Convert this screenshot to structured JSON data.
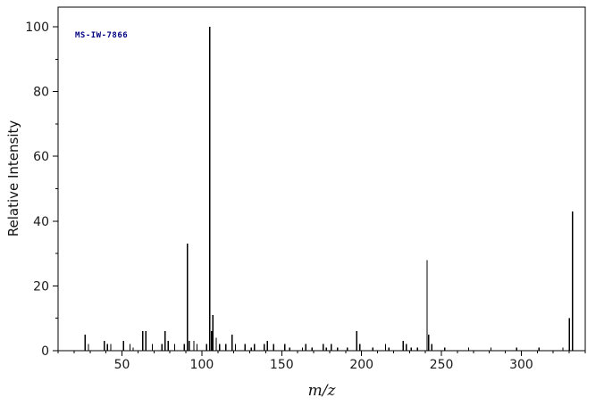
{
  "chart_data": {
    "type": "bar",
    "subtype": "mass-spectrum",
    "annotation": "MS-IW-7866",
    "xlabel": "m/z",
    "ylabel": "Relative Intensity",
    "xlim": [
      10,
      340
    ],
    "ylim": [
      0,
      100
    ],
    "x_major_ticks": [
      50,
      100,
      150,
      200,
      250,
      300
    ],
    "y_major_ticks": [
      0,
      20,
      40,
      60,
      80,
      100
    ],
    "x_minor_step": 10,
    "y_minor_step": 10,
    "grid": false,
    "legend": false,
    "colors": {
      "axis": "#000000",
      "peak": "#000000",
      "tick_label": "#1a1a1a",
      "annotation": "#000080",
      "background": "#ffffff"
    },
    "peaks": [
      [
        27,
        5
      ],
      [
        29,
        2
      ],
      [
        39,
        3
      ],
      [
        41,
        2
      ],
      [
        43,
        2
      ],
      [
        51,
        3
      ],
      [
        55,
        2
      ],
      [
        57,
        1
      ],
      [
        63,
        6
      ],
      [
        65,
        6
      ],
      [
        69,
        2
      ],
      [
        75,
        2
      ],
      [
        77,
        6
      ],
      [
        79,
        3
      ],
      [
        83,
        2
      ],
      [
        89,
        2
      ],
      [
        91,
        33
      ],
      [
        92,
        3
      ],
      [
        95,
        3
      ],
      [
        97,
        2
      ],
      [
        103,
        2
      ],
      [
        105,
        100
      ],
      [
        106,
        6
      ],
      [
        107,
        11
      ],
      [
        109,
        4
      ],
      [
        111,
        2
      ],
      [
        115,
        2
      ],
      [
        119,
        5
      ],
      [
        121,
        2
      ],
      [
        127,
        2
      ],
      [
        131,
        1
      ],
      [
        133,
        2
      ],
      [
        139,
        2
      ],
      [
        141,
        3
      ],
      [
        145,
        2
      ],
      [
        152,
        2
      ],
      [
        155,
        1
      ],
      [
        163,
        1
      ],
      [
        165,
        2
      ],
      [
        169,
        1
      ],
      [
        176,
        2
      ],
      [
        178,
        1
      ],
      [
        181,
        2
      ],
      [
        185,
        1
      ],
      [
        191,
        1
      ],
      [
        197,
        6
      ],
      [
        199,
        2
      ],
      [
        207,
        1
      ],
      [
        215,
        2
      ],
      [
        217,
        1
      ],
      [
        226,
        3
      ],
      [
        228,
        2
      ],
      [
        231,
        1
      ],
      [
        235,
        1
      ],
      [
        241,
        28
      ],
      [
        242,
        5
      ],
      [
        244,
        2
      ],
      [
        252,
        1
      ],
      [
        267,
        1
      ],
      [
        281,
        1
      ],
      [
        297,
        1
      ],
      [
        311,
        1
      ],
      [
        326,
        1
      ],
      [
        330,
        10
      ],
      [
        332,
        43
      ]
    ]
  }
}
